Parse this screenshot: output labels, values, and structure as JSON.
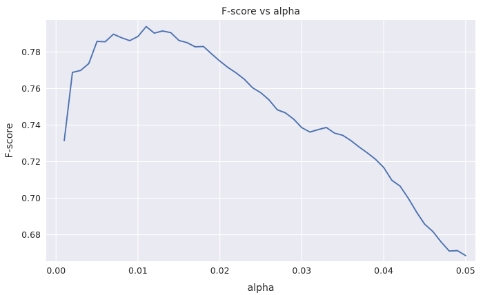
{
  "chart_data": {
    "type": "line",
    "title": "F-score vs alpha",
    "xlabel": "alpha",
    "ylabel": "F-score",
    "xlim": [
      -0.0012,
      0.0512
    ],
    "ylim": [
      0.6655,
      0.7975
    ],
    "xticks": [
      0.0,
      0.01,
      0.02,
      0.03,
      0.04,
      0.05
    ],
    "xtick_labels": [
      "0.00",
      "0.01",
      "0.02",
      "0.03",
      "0.04",
      "0.05"
    ],
    "yticks": [
      0.68,
      0.7,
      0.72,
      0.74,
      0.76,
      0.78
    ],
    "ytick_labels": [
      "0.68",
      "0.70",
      "0.72",
      "0.74",
      "0.76",
      "0.78"
    ],
    "grid": true,
    "series": [
      {
        "color": "#4c72b0",
        "x": [
          0.001,
          0.002,
          0.003,
          0.004,
          0.005,
          0.006,
          0.007,
          0.008,
          0.009,
          0.01,
          0.011,
          0.012,
          0.013,
          0.014,
          0.015,
          0.016,
          0.017,
          0.018,
          0.019,
          0.02,
          0.021,
          0.022,
          0.023,
          0.024,
          0.025,
          0.026,
          0.027,
          0.028,
          0.029,
          0.03,
          0.031,
          0.032,
          0.033,
          0.034,
          0.035,
          0.036,
          0.037,
          0.038,
          0.039,
          0.04,
          0.041,
          0.042,
          0.043,
          0.044,
          0.045,
          0.046,
          0.047,
          0.048,
          0.049,
          0.05
        ],
        "y": [
          0.7315,
          0.7688,
          0.7699,
          0.7737,
          0.7858,
          0.7856,
          0.7897,
          0.7878,
          0.7862,
          0.7885,
          0.7939,
          0.7903,
          0.7915,
          0.7906,
          0.7863,
          0.7851,
          0.7828,
          0.783,
          0.7789,
          0.775,
          0.7715,
          0.7685,
          0.765,
          0.7604,
          0.7577,
          0.7538,
          0.7484,
          0.7467,
          0.7433,
          0.7386,
          0.7362,
          0.7375,
          0.7387,
          0.7356,
          0.7344,
          0.7315,
          0.728,
          0.7248,
          0.7213,
          0.7168,
          0.7098,
          0.7066,
          0.7,
          0.6925,
          0.6858,
          0.6818,
          0.6761,
          0.6711,
          0.6713,
          0.6686
        ]
      }
    ]
  }
}
